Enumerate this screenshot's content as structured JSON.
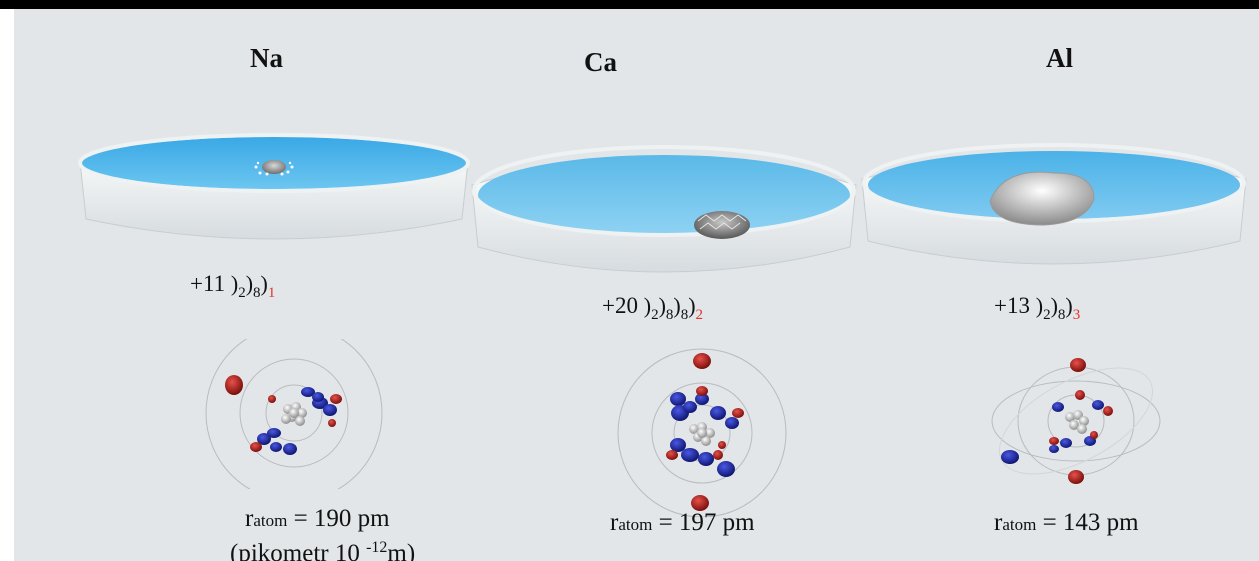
{
  "elements": [
    {
      "symbol": "Na",
      "nucleus_charge": "+11",
      "shells": [
        "2",
        "8"
      ],
      "valence": "1",
      "radius_label": "r",
      "radius_sub": "atom",
      "radius_value": " = 190 pm",
      "note_prefix": "(pikometr 10 ",
      "note_exp": "-12",
      "note_suffix": "m)"
    },
    {
      "symbol": "Ca",
      "nucleus_charge": "+20",
      "shells": [
        "2",
        "8",
        "8"
      ],
      "valence": "2",
      "radius_label": "r",
      "radius_sub": "atom",
      "radius_value": " = 197 pm"
    },
    {
      "symbol": "Al",
      "nucleus_charge": "+13",
      "shells": [
        "2",
        "8"
      ],
      "valence": "3",
      "radius_label": "r",
      "radius_sub": "atom",
      "radius_value": " = 143 pm"
    }
  ],
  "colors": {
    "water": "#5ab9e8",
    "electron_red": "#b0201d",
    "electron_blue": "#1f2aa8",
    "valence_text": "#e0342c",
    "background": "#e2e6e9"
  }
}
